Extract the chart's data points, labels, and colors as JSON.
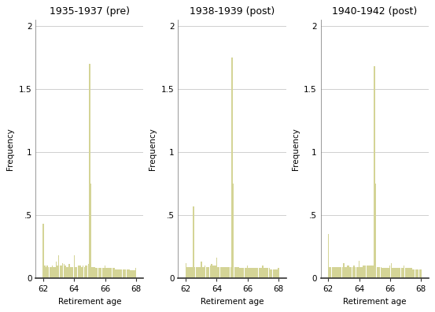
{
  "titles": [
    "1935-1937 (pre)",
    "1938-1939 (post)",
    "1940-1942 (post)"
  ],
  "xlabel": "Retirement age",
  "ylabel": "Frequency",
  "xlim": [
    61.5,
    68.5
  ],
  "ylim": [
    0,
    2.05
  ],
  "yticks": [
    0,
    0.5,
    1.0,
    1.5,
    2.0
  ],
  "ytick_labels": [
    "0",
    ".5",
    "1",
    "1.5",
    "2"
  ],
  "xticks": [
    62,
    64,
    66,
    68
  ],
  "bar_color": "#d4d496",
  "bar_edge_color": "#c8c87a",
  "background_color": "#ffffff",
  "grid_color": "#c8c8c8",
  "spine_color": "#888888",
  "panels": [
    {
      "bars": [
        [
          62.0,
          0.43
        ],
        [
          62.083,
          0.1
        ],
        [
          62.167,
          0.09
        ],
        [
          62.25,
          0.1
        ],
        [
          62.333,
          0.09
        ],
        [
          62.417,
          0.09
        ],
        [
          62.5,
          0.09
        ],
        [
          62.583,
          0.1
        ],
        [
          62.667,
          0.09
        ],
        [
          62.75,
          0.09
        ],
        [
          62.833,
          0.13
        ],
        [
          62.917,
          0.1
        ],
        [
          63.0,
          0.18
        ],
        [
          63.083,
          0.1
        ],
        [
          63.167,
          0.1
        ],
        [
          63.25,
          0.12
        ],
        [
          63.333,
          0.11
        ],
        [
          63.417,
          0.1
        ],
        [
          63.5,
          0.09
        ],
        [
          63.583,
          0.09
        ],
        [
          63.667,
          0.11
        ],
        [
          63.75,
          0.09
        ],
        [
          63.833,
          0.09
        ],
        [
          63.917,
          0.09
        ],
        [
          64.0,
          0.18
        ],
        [
          64.083,
          0.09
        ],
        [
          64.167,
          0.09
        ],
        [
          64.25,
          0.1
        ],
        [
          64.333,
          0.1
        ],
        [
          64.417,
          0.1
        ],
        [
          64.5,
          0.09
        ],
        [
          64.583,
          0.1
        ],
        [
          64.667,
          0.09
        ],
        [
          64.75,
          0.1
        ],
        [
          64.833,
          0.1
        ],
        [
          64.917,
          0.11
        ],
        [
          65.0,
          1.7
        ],
        [
          65.083,
          0.75
        ],
        [
          65.167,
          0.09
        ],
        [
          65.25,
          0.09
        ],
        [
          65.333,
          0.09
        ],
        [
          65.417,
          0.08
        ],
        [
          65.5,
          0.08
        ],
        [
          65.583,
          0.08
        ],
        [
          65.667,
          0.08
        ],
        [
          65.75,
          0.08
        ],
        [
          65.833,
          0.08
        ],
        [
          65.917,
          0.08
        ],
        [
          66.0,
          0.1
        ],
        [
          66.083,
          0.08
        ],
        [
          66.167,
          0.08
        ],
        [
          66.25,
          0.08
        ],
        [
          66.333,
          0.08
        ],
        [
          66.417,
          0.08
        ],
        [
          66.5,
          0.08
        ],
        [
          66.583,
          0.08
        ],
        [
          66.667,
          0.07
        ],
        [
          66.75,
          0.07
        ],
        [
          66.833,
          0.07
        ],
        [
          66.917,
          0.07
        ],
        [
          67.0,
          0.07
        ],
        [
          67.083,
          0.07
        ],
        [
          67.167,
          0.07
        ],
        [
          67.25,
          0.07
        ],
        [
          67.333,
          0.07
        ],
        [
          67.417,
          0.07
        ],
        [
          67.5,
          0.07
        ],
        [
          67.583,
          0.07
        ],
        [
          67.667,
          0.06
        ],
        [
          67.75,
          0.06
        ],
        [
          67.833,
          0.06
        ],
        [
          67.917,
          0.06
        ],
        [
          68.0,
          0.08
        ]
      ]
    },
    {
      "bars": [
        [
          62.0,
          0.12
        ],
        [
          62.083,
          0.09
        ],
        [
          62.167,
          0.09
        ],
        [
          62.25,
          0.09
        ],
        [
          62.333,
          0.09
        ],
        [
          62.417,
          0.09
        ],
        [
          62.5,
          0.57
        ],
        [
          62.583,
          0.09
        ],
        [
          62.667,
          0.09
        ],
        [
          62.75,
          0.09
        ],
        [
          62.833,
          0.09
        ],
        [
          62.917,
          0.09
        ],
        [
          63.0,
          0.13
        ],
        [
          63.083,
          0.09
        ],
        [
          63.167,
          0.09
        ],
        [
          63.25,
          0.1
        ],
        [
          63.333,
          0.09
        ],
        [
          63.417,
          0.09
        ],
        [
          63.5,
          0.09
        ],
        [
          63.583,
          0.1
        ],
        [
          63.667,
          0.11
        ],
        [
          63.75,
          0.1
        ],
        [
          63.833,
          0.1
        ],
        [
          63.917,
          0.1
        ],
        [
          64.0,
          0.16
        ],
        [
          64.083,
          0.09
        ],
        [
          64.167,
          0.09
        ],
        [
          64.25,
          0.09
        ],
        [
          64.333,
          0.09
        ],
        [
          64.417,
          0.09
        ],
        [
          64.5,
          0.09
        ],
        [
          64.583,
          0.09
        ],
        [
          64.667,
          0.09
        ],
        [
          64.75,
          0.09
        ],
        [
          64.833,
          0.09
        ],
        [
          64.917,
          0.09
        ],
        [
          65.0,
          1.75
        ],
        [
          65.083,
          0.75
        ],
        [
          65.167,
          0.09
        ],
        [
          65.25,
          0.09
        ],
        [
          65.333,
          0.09
        ],
        [
          65.417,
          0.09
        ],
        [
          65.5,
          0.08
        ],
        [
          65.583,
          0.08
        ],
        [
          65.667,
          0.08
        ],
        [
          65.75,
          0.08
        ],
        [
          65.833,
          0.08
        ],
        [
          65.917,
          0.08
        ],
        [
          66.0,
          0.1
        ],
        [
          66.083,
          0.08
        ],
        [
          66.167,
          0.08
        ],
        [
          66.25,
          0.08
        ],
        [
          66.333,
          0.08
        ],
        [
          66.417,
          0.08
        ],
        [
          66.5,
          0.08
        ],
        [
          66.583,
          0.08
        ],
        [
          66.667,
          0.08
        ],
        [
          66.75,
          0.08
        ],
        [
          66.833,
          0.08
        ],
        [
          66.917,
          0.08
        ],
        [
          67.0,
          0.1
        ],
        [
          67.083,
          0.08
        ],
        [
          67.167,
          0.08
        ],
        [
          67.25,
          0.08
        ],
        [
          67.333,
          0.08
        ],
        [
          67.417,
          0.08
        ],
        [
          67.5,
          0.07
        ],
        [
          67.583,
          0.07
        ],
        [
          67.667,
          0.07
        ],
        [
          67.75,
          0.07
        ],
        [
          67.833,
          0.07
        ],
        [
          67.917,
          0.07
        ],
        [
          68.0,
          0.08
        ]
      ]
    },
    {
      "bars": [
        [
          62.0,
          0.35
        ],
        [
          62.083,
          0.09
        ],
        [
          62.167,
          0.09
        ],
        [
          62.25,
          0.09
        ],
        [
          62.333,
          0.09
        ],
        [
          62.417,
          0.09
        ],
        [
          62.5,
          0.09
        ],
        [
          62.583,
          0.09
        ],
        [
          62.667,
          0.09
        ],
        [
          62.75,
          0.09
        ],
        [
          62.833,
          0.09
        ],
        [
          62.917,
          0.09
        ],
        [
          63.0,
          0.12
        ],
        [
          63.083,
          0.09
        ],
        [
          63.167,
          0.09
        ],
        [
          63.25,
          0.1
        ],
        [
          63.333,
          0.1
        ],
        [
          63.417,
          0.09
        ],
        [
          63.5,
          0.09
        ],
        [
          63.583,
          0.09
        ],
        [
          63.667,
          0.1
        ],
        [
          63.75,
          0.09
        ],
        [
          63.833,
          0.09
        ],
        [
          63.917,
          0.09
        ],
        [
          64.0,
          0.14
        ],
        [
          64.083,
          0.09
        ],
        [
          64.167,
          0.09
        ],
        [
          64.25,
          0.1
        ],
        [
          64.333,
          0.1
        ],
        [
          64.417,
          0.1
        ],
        [
          64.5,
          0.1
        ],
        [
          64.583,
          0.1
        ],
        [
          64.667,
          0.1
        ],
        [
          64.75,
          0.1
        ],
        [
          64.833,
          0.1
        ],
        [
          64.917,
          0.1
        ],
        [
          65.0,
          1.68
        ],
        [
          65.083,
          0.75
        ],
        [
          65.167,
          0.09
        ],
        [
          65.25,
          0.09
        ],
        [
          65.333,
          0.09
        ],
        [
          65.417,
          0.09
        ],
        [
          65.5,
          0.08
        ],
        [
          65.583,
          0.08
        ],
        [
          65.667,
          0.08
        ],
        [
          65.75,
          0.08
        ],
        [
          65.833,
          0.08
        ],
        [
          65.917,
          0.08
        ],
        [
          66.0,
          0.1
        ],
        [
          66.083,
          0.12
        ],
        [
          66.167,
          0.08
        ],
        [
          66.25,
          0.08
        ],
        [
          66.333,
          0.08
        ],
        [
          66.417,
          0.08
        ],
        [
          66.5,
          0.08
        ],
        [
          66.583,
          0.08
        ],
        [
          66.667,
          0.08
        ],
        [
          66.75,
          0.08
        ],
        [
          66.833,
          0.08
        ],
        [
          66.917,
          0.1
        ],
        [
          67.0,
          0.08
        ],
        [
          67.083,
          0.08
        ],
        [
          67.167,
          0.08
        ],
        [
          67.25,
          0.08
        ],
        [
          67.333,
          0.08
        ],
        [
          67.417,
          0.08
        ],
        [
          67.5,
          0.07
        ],
        [
          67.583,
          0.07
        ],
        [
          67.667,
          0.07
        ],
        [
          67.75,
          0.07
        ],
        [
          67.833,
          0.07
        ],
        [
          67.917,
          0.07
        ],
        [
          68.0,
          0.07
        ]
      ]
    }
  ]
}
